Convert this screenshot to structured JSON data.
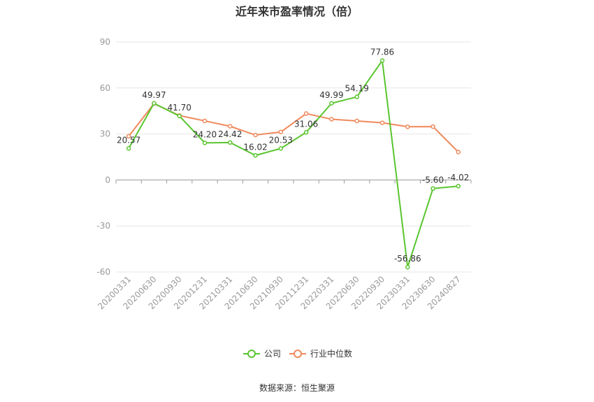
{
  "title": "近年来市盈率情况（倍）",
  "source": "数据来源：恒生聚源",
  "colors": {
    "company": "#5ac530",
    "industry": "#f0895c",
    "grid": "#e6e6e6",
    "axis": "#999999"
  },
  "legend": {
    "company": "公司",
    "industry": "行业中位数"
  },
  "chart_data": {
    "type": "line",
    "title": "近年来市盈率情况（倍）",
    "categories": [
      "20200331",
      "20200630",
      "20200930",
      "20201231",
      "20210331",
      "20210630",
      "20210930",
      "20211231",
      "20220331",
      "20220630",
      "20220930",
      "20230331",
      "20230630",
      "20240827"
    ],
    "ylim": [
      -60,
      90
    ],
    "yticks": [
      90,
      60,
      30,
      0,
      -30,
      -60
    ],
    "grid": true,
    "legend_position": "bottom",
    "series": [
      {
        "name": "公司",
        "values": [
          20.57,
          49.97,
          41.7,
          24.2,
          24.42,
          16.02,
          20.53,
          31.06,
          49.99,
          54.19,
          77.86,
          -56.86,
          -5.6,
          -4.02
        ],
        "labels": [
          "20.57",
          "49.97",
          "41.70",
          "24.20",
          "24.42",
          "16.02",
          "20.53",
          "31.06",
          "49.99",
          "54.19",
          "77.86",
          "-56.86",
          "-5.60",
          "-4.02"
        ]
      },
      {
        "name": "行业中位数",
        "values": [
          28.5,
          49.8,
          42.0,
          38.5,
          35.0,
          29.3,
          31.3,
          43.3,
          39.6,
          38.5,
          37.3,
          34.7,
          34.8,
          18.2
        ]
      }
    ]
  }
}
